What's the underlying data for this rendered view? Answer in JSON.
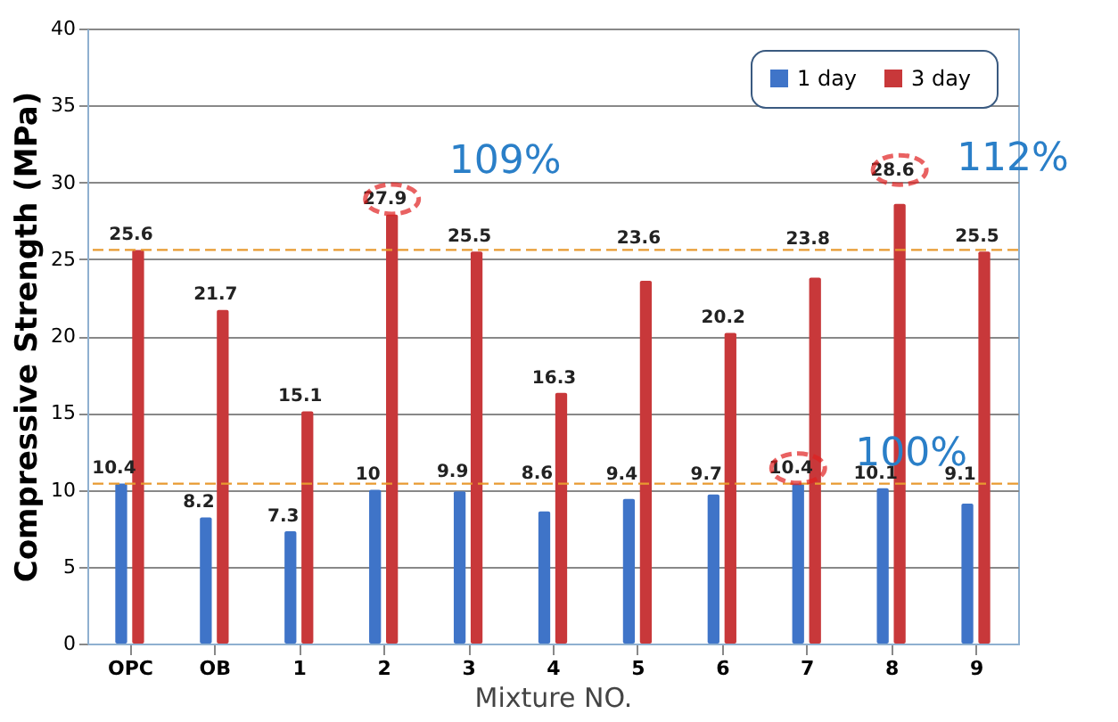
{
  "chart_data": {
    "type": "bar",
    "xlabel": "Mixture NO.",
    "ylabel": "Compressive Strength (MPa)",
    "categories": [
      "OPC",
      "OB",
      "1",
      "2",
      "3",
      "4",
      "5",
      "6",
      "7",
      "8",
      "9"
    ],
    "series": [
      {
        "name": "1  day",
        "color": "#3f74c8",
        "values": [
          10.4,
          8.2,
          7.3,
          10,
          9.9,
          8.6,
          9.4,
          9.7,
          10.4,
          10.1,
          9.1
        ]
      },
      {
        "name": "3  day",
        "color": "#c8383a",
        "values": [
          25.6,
          21.7,
          15.1,
          27.9,
          25.5,
          16.3,
          23.6,
          20.2,
          23.8,
          28.6,
          25.5
        ]
      }
    ],
    "ylim": [
      0,
      40
    ],
    "yticks": [
      0,
      5,
      10,
      15,
      20,
      25,
      30,
      35,
      40
    ],
    "grid": "y",
    "legend": "top right",
    "data_labels": true,
    "ref_lines": [
      {
        "axis": "y",
        "value": 25.6,
        "color": "#e89a30",
        "line_style": "dashed"
      },
      {
        "axis": "y",
        "value": 10.4,
        "color": "#e89a30",
        "line_style": "dashed"
      }
    ],
    "annotations": [
      {
        "text": "109%",
        "x": "2",
        "y": 27.9
      },
      {
        "text": "112%",
        "x": "8",
        "y": 28.6
      },
      {
        "text": "100%",
        "x": "7",
        "y": 10.4
      }
    ]
  }
}
